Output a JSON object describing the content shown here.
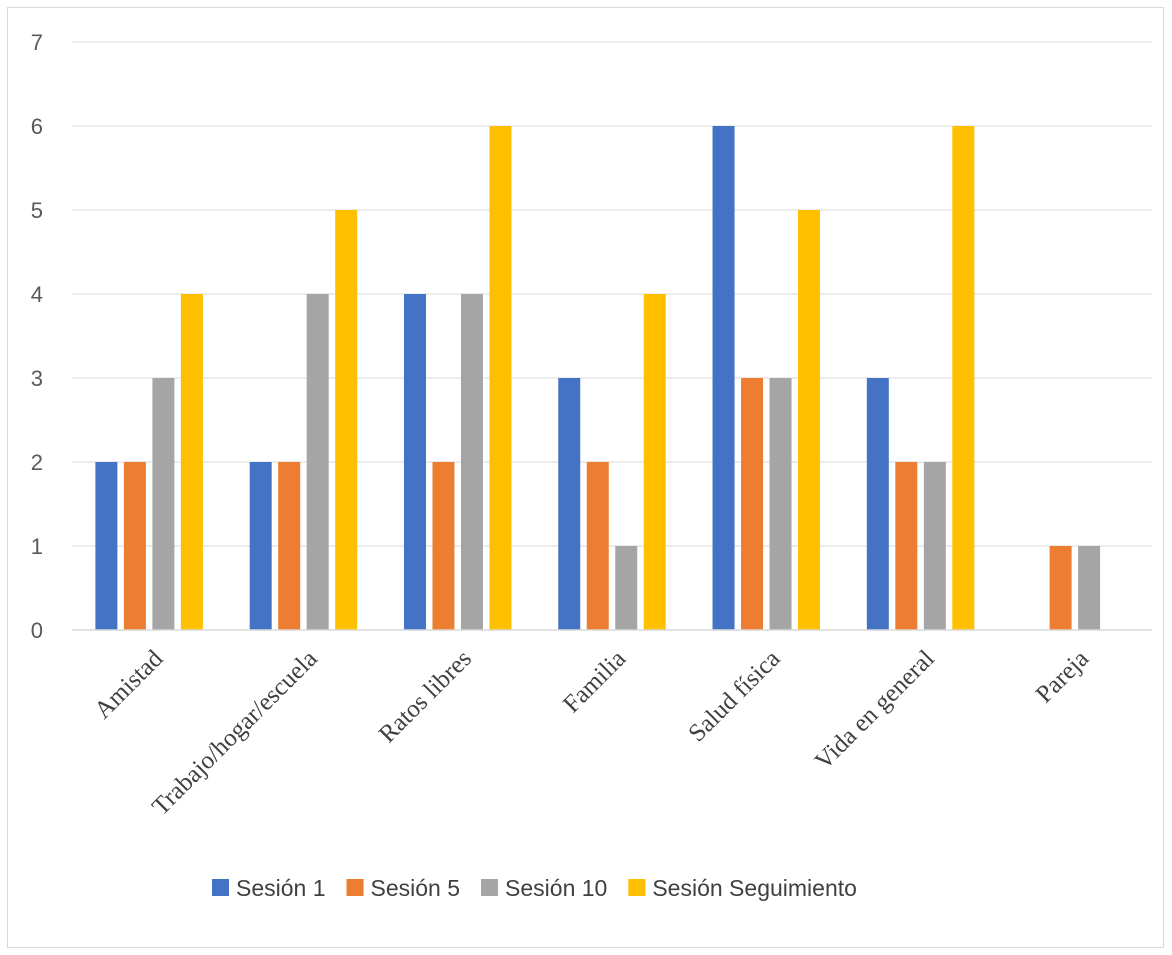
{
  "chart_data": {
    "type": "bar",
    "title": "",
    "xlabel": "",
    "ylabel": "",
    "categories": [
      "Amistad",
      "Trabajo/hogar/escuela",
      "Ratos libres",
      "Familia",
      "Salud física",
      "Vida en general",
      "Pareja"
    ],
    "series": [
      {
        "name": "Sesión 1",
        "color": "#4472C4",
        "values": [
          2,
          2,
          4,
          3,
          6,
          3,
          0
        ]
      },
      {
        "name": "Sesión 5",
        "color": "#ED7D31",
        "values": [
          2,
          2,
          2,
          2,
          3,
          2,
          1
        ]
      },
      {
        "name": "Sesión 10",
        "color": "#A5A5A5",
        "values": [
          3,
          4,
          4,
          1,
          3,
          2,
          1
        ]
      },
      {
        "name": "Sesión Seguimiento",
        "color": "#FFC000",
        "values": [
          4,
          5,
          6,
          4,
          5,
          6,
          0
        ]
      }
    ],
    "ylim": [
      0,
      7
    ],
    "yticks": [
      "0",
      "1",
      "2",
      "3",
      "4",
      "5",
      "6",
      "7"
    ],
    "grid": true,
    "legend_position": "bottom"
  }
}
